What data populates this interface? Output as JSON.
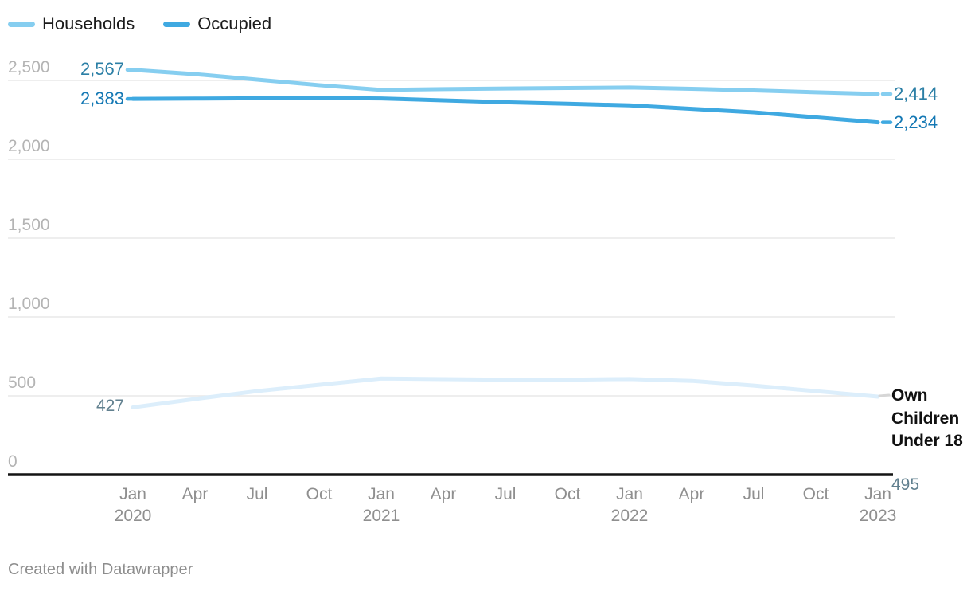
{
  "legend": {
    "items": [
      {
        "label": "Households",
        "color": "#86CEF0"
      },
      {
        "label": "Occupied",
        "color": "#3FA9E1"
      }
    ]
  },
  "chart_data": {
    "type": "line",
    "title": "",
    "x_labels": [
      "Jan 2020",
      "Apr 2020",
      "Jul 2020",
      "Oct 2020",
      "Jan 2021",
      "Apr 2021",
      "Jul 2021",
      "Oct 2021",
      "Jan 2022",
      "Apr 2022",
      "Jul 2022",
      "Oct 2022",
      "Jan 2023"
    ],
    "xticks": [
      {
        "month": "Jan",
        "year": "2020"
      },
      {
        "month": "Apr"
      },
      {
        "month": "Jul"
      },
      {
        "month": "Oct"
      },
      {
        "month": "Jan",
        "year": "2021"
      },
      {
        "month": "Apr"
      },
      {
        "month": "Jul"
      },
      {
        "month": "Oct"
      },
      {
        "month": "Jan",
        "year": "2022"
      },
      {
        "month": "Apr"
      },
      {
        "month": "Jul"
      },
      {
        "month": "Oct"
      },
      {
        "month": "Jan",
        "year": "2023"
      }
    ],
    "yticks": [
      {
        "value": 2500,
        "label": "2,500"
      },
      {
        "value": 2000,
        "label": "2,000"
      },
      {
        "value": 1500,
        "label": "1,500"
      },
      {
        "value": 1000,
        "label": "1,000"
      },
      {
        "value": 500,
        "label": "500"
      },
      {
        "value": 0,
        "label": "0"
      }
    ],
    "ylim": [
      0,
      2500
    ],
    "grid": "horizontal",
    "legend_position": "top-left",
    "series": [
      {
        "name": "Households",
        "color": "#86CEF0",
        "label_color": "#2B7FA6",
        "start_label": "2,567",
        "end_label": "2,414",
        "values": [
          2567,
          2540,
          2505,
          2470,
          2440,
          2445,
          2449,
          2452,
          2455,
          2447,
          2437,
          2425,
          2414
        ]
      },
      {
        "name": "Occupied",
        "color": "#3FA9E1",
        "label_color": "#1478B4",
        "start_label": "2,383",
        "end_label": "2,234",
        "values": [
          2383,
          2385,
          2387,
          2389,
          2386,
          2374,
          2362,
          2352,
          2342,
          2320,
          2298,
          2266,
          2234
        ]
      },
      {
        "name": "Own Children Under 18",
        "color": "#DCEEFB",
        "label_color": "#61808F",
        "start_label": "427",
        "end_label": "495",
        "values": [
          427,
          480,
          530,
          570,
          610,
          606,
          602,
          602,
          607,
          595,
          565,
          530,
          495
        ]
      }
    ]
  },
  "footer": {
    "text": "Created with Datawrapper"
  }
}
